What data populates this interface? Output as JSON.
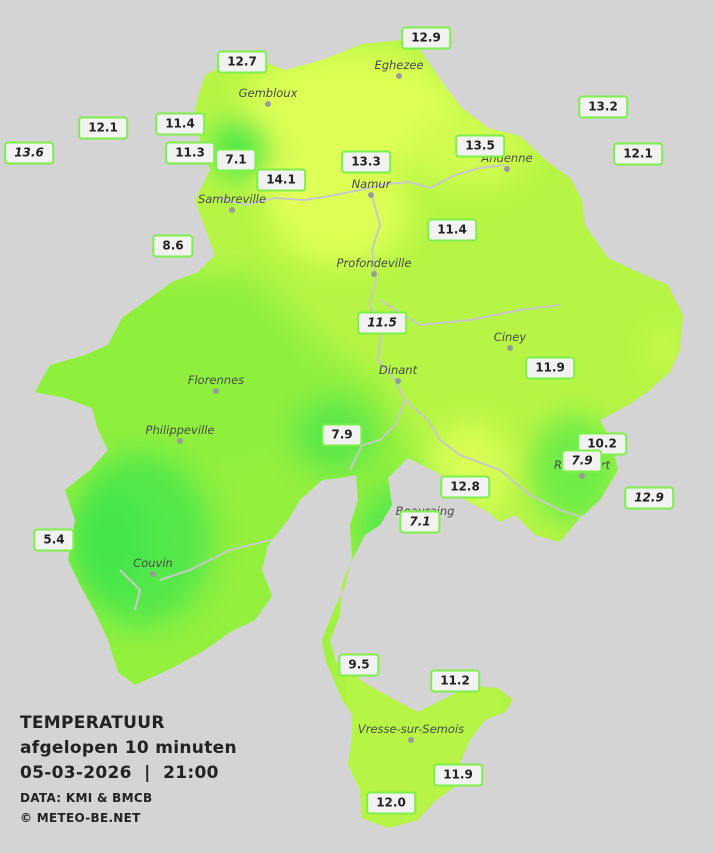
{
  "map": {
    "colors": {
      "background": "#d4d4d4",
      "base_warm": "#b6f545",
      "base_mid": "#93f03c",
      "warm_spot": "#ddff55",
      "hot_spot": "#f5ff66",
      "cold_spot": "#4fe84a",
      "river": "#c8c8c8",
      "badge_border": "#7cf04a"
    },
    "towns": [
      {
        "name": "Eghezee"
      },
      {
        "name": "Gembloux"
      },
      {
        "name": "Andenne"
      },
      {
        "name": "Namur"
      },
      {
        "name": "Sambreville"
      },
      {
        "name": "Profondeville"
      },
      {
        "name": "Ciney"
      },
      {
        "name": "Dinant"
      },
      {
        "name": "Florennes"
      },
      {
        "name": "Philippeville"
      },
      {
        "name": "Rochefort"
      },
      {
        "name": "Beauraing"
      },
      {
        "name": "Couvin"
      },
      {
        "name": "Vresse-sur-Semois"
      }
    ],
    "stations": [
      {
        "value": "12.9"
      },
      {
        "value": "12.7"
      },
      {
        "value": "13.2"
      },
      {
        "value": "12.1"
      },
      {
        "value": "11.4"
      },
      {
        "value": "13.6"
      },
      {
        "value": "11.3"
      },
      {
        "value": "7.1"
      },
      {
        "value": "14.1"
      },
      {
        "value": "13.3"
      },
      {
        "value": "13.5"
      },
      {
        "value": "12.1"
      },
      {
        "value": "8.6"
      },
      {
        "value": "11.4"
      },
      {
        "value": "11.5"
      },
      {
        "value": "11.9"
      },
      {
        "value": "7.9"
      },
      {
        "value": "10.2"
      },
      {
        "value": "7.9"
      },
      {
        "value": "12.8"
      },
      {
        "value": "12.9"
      },
      {
        "value": "7.1"
      },
      {
        "value": "5.4"
      },
      {
        "value": "9.5"
      },
      {
        "value": "11.2"
      },
      {
        "value": "11.9"
      },
      {
        "value": "12.0"
      }
    ]
  },
  "legend": {
    "title": "TEMPERATUUR",
    "subtitle": "afgelopen 10 minuten",
    "datetime": "05-03-2026  |  21:00",
    "source": "DATA: KMI & BMCB",
    "copyright": "© METEO-BE.NET"
  }
}
